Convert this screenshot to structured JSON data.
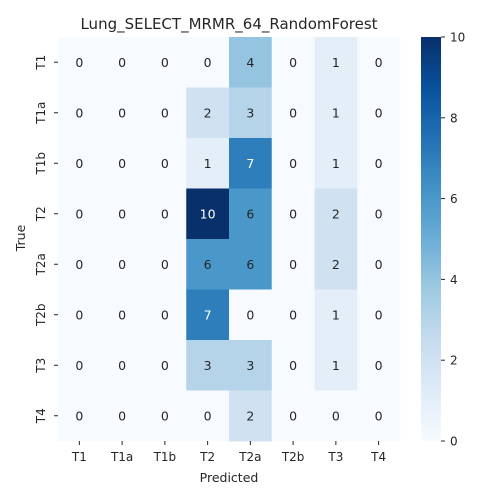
{
  "chart_data": {
    "type": "heatmap",
    "title": "Lung_SELECT_MRMR_64_RandomForest",
    "xlabel": "Predicted",
    "ylabel": "True",
    "x_categories": [
      "T1",
      "T1a",
      "T1b",
      "T2",
      "T2a",
      "T2b",
      "T3",
      "T4"
    ],
    "y_categories": [
      "T1",
      "T1a",
      "T1b",
      "T2",
      "T2a",
      "T2b",
      "T3",
      "T4"
    ],
    "values": [
      [
        0,
        0,
        0,
        0,
        4,
        0,
        1,
        0
      ],
      [
        0,
        0,
        0,
        2,
        3,
        0,
        1,
        0
      ],
      [
        0,
        0,
        0,
        1,
        7,
        0,
        1,
        0
      ],
      [
        0,
        0,
        0,
        10,
        6,
        0,
        2,
        0
      ],
      [
        0,
        0,
        0,
        6,
        6,
        0,
        2,
        0
      ],
      [
        0,
        0,
        0,
        7,
        0,
        0,
        1,
        0
      ],
      [
        0,
        0,
        0,
        3,
        3,
        0,
        1,
        0
      ],
      [
        0,
        0,
        0,
        0,
        2,
        0,
        0,
        0
      ]
    ],
    "colormap": "Blues",
    "vmin": 0,
    "vmax": 10,
    "colorbar_ticks": [
      0,
      2,
      4,
      6,
      8,
      10
    ]
  }
}
